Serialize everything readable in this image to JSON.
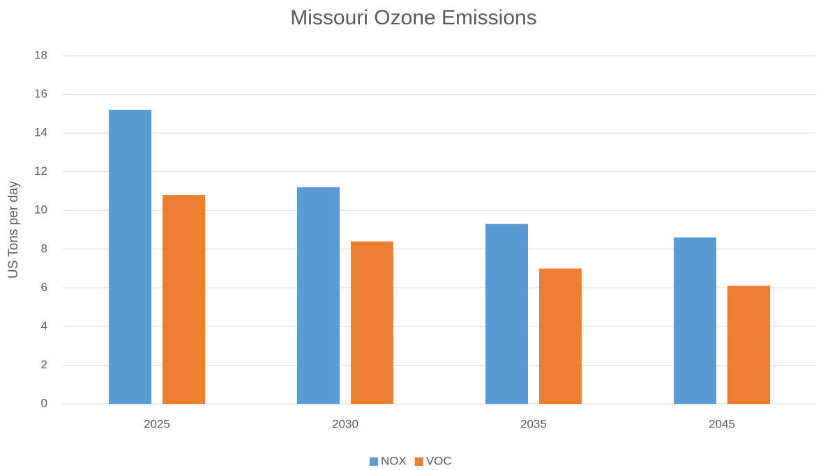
{
  "chart_data": {
    "type": "bar",
    "title": "Missouri Ozone Emissions",
    "y_label": "US Tons per day",
    "categories": [
      "2025",
      "2030",
      "2035",
      "2045"
    ],
    "series": [
      {
        "name": "NOX",
        "color": "#5b9bd5",
        "values": [
          15.2,
          11.2,
          9.3,
          8.6
        ]
      },
      {
        "name": "VOC",
        "color": "#ed7d31",
        "values": [
          10.8,
          8.4,
          7.0,
          6.1
        ]
      }
    ],
    "ylim": [
      0,
      18
    ],
    "yticks": [
      0,
      2,
      4,
      6,
      8,
      10,
      12,
      14,
      16,
      18
    ],
    "grid": true,
    "legend": "bottom"
  }
}
